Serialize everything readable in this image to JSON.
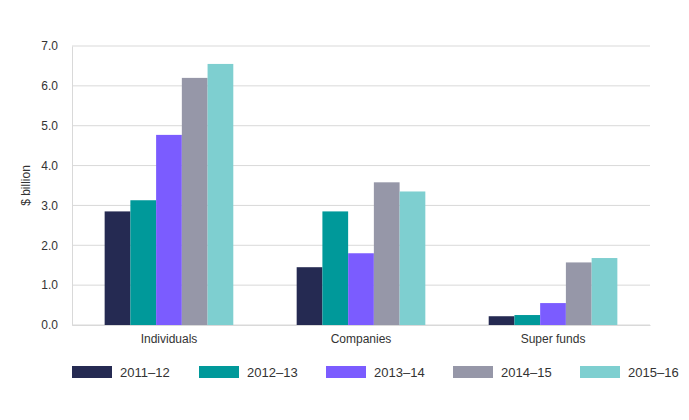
{
  "chart_data": {
    "type": "bar",
    "y_label": "$ billion",
    "categories": [
      "Individuals",
      "Companies",
      "Super funds"
    ],
    "series": [
      {
        "name": "2011–12",
        "color": "#252a52",
        "values": [
          2.85,
          1.45,
          0.22
        ]
      },
      {
        "name": "2012–13",
        "color": "#00999a",
        "values": [
          3.13,
          2.85,
          0.25
        ]
      },
      {
        "name": "2013–14",
        "color": "#7b5cff",
        "values": [
          4.77,
          1.8,
          0.55
        ]
      },
      {
        "name": "2014–15",
        "color": "#9697a8",
        "values": [
          6.2,
          3.58,
          1.57
        ]
      },
      {
        "name": "2015–16",
        "color": "#7ecfd0",
        "values": [
          6.55,
          3.35,
          1.68
        ]
      }
    ],
    "ylim": [
      0,
      7
    ],
    "yticks": [
      {
        "value": 0,
        "label": "0.0"
      },
      {
        "value": 1,
        "label": "1.0"
      },
      {
        "value": 2,
        "label": "2.0"
      },
      {
        "value": 3,
        "label": "3.0"
      },
      {
        "value": 4,
        "label": "4.0"
      },
      {
        "value": 5,
        "label": "5.0"
      },
      {
        "value": 6,
        "label": "6.0"
      },
      {
        "value": 7,
        "label": "7.0"
      }
    ],
    "grid": true,
    "legend": "bottom"
  }
}
